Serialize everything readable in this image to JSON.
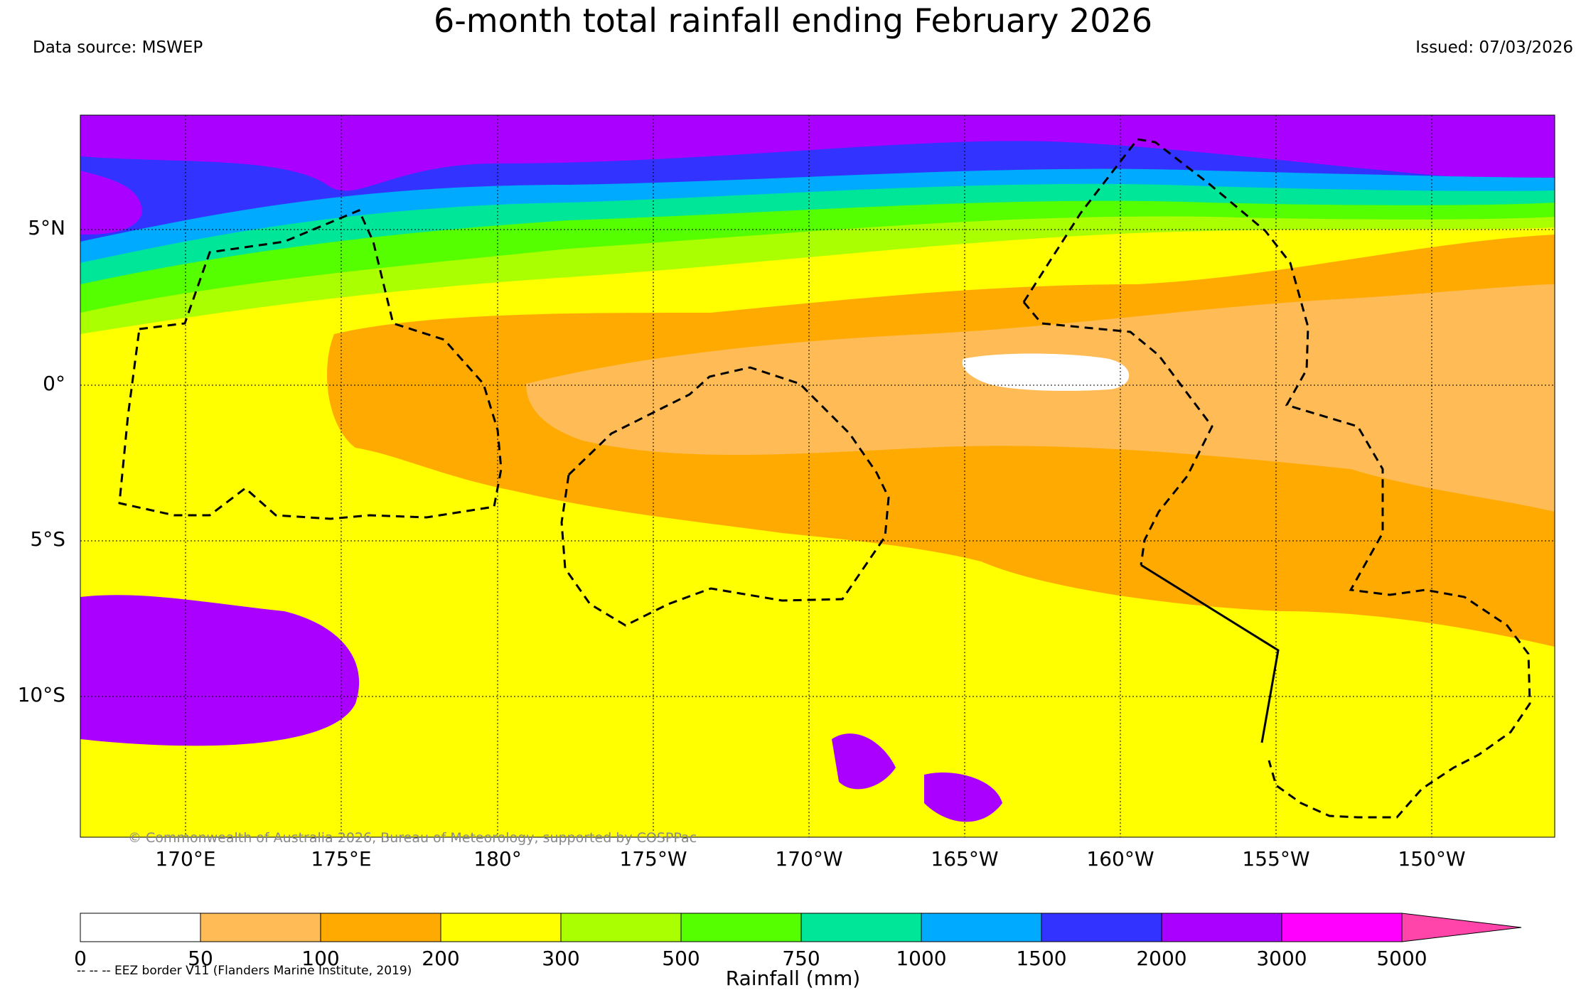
{
  "title": "6-month total rainfall ending February 2026",
  "data_source": "Data source: MSWEP",
  "issued": "Issued: 07/03/2026",
  "latitude_labels": [
    "5°N",
    "0°",
    "5°S",
    "10°S"
  ],
  "longitude_labels": [
    "170°E",
    "175°E",
    "180°",
    "175°W",
    "170°W",
    "165°W",
    "160°W",
    "155°W",
    "150°W"
  ],
  "copyright": "© Commonwealth of Australia 2026, Bureau of Meteorology, supported by COSPPac",
  "colorbar": {
    "title": "Rainfall (mm)",
    "ticks": [
      "0",
      "50",
      "100",
      "200",
      "300",
      "500",
      "750",
      "1000",
      "1500",
      "2000",
      "3000",
      "5000"
    ],
    "colors": [
      "#ffffff",
      "#ffbb55",
      "#ffaa00",
      "#ffff00",
      "#aaff00",
      "#55ff00",
      "#00e699",
      "#00aaff",
      "#3333ff",
      "#aa00ff",
      "#ff00ff",
      "#ff44aa"
    ]
  },
  "eez_note": "-- -- -- EEZ border V11 (Flanders Marine Institute, 2019)"
}
